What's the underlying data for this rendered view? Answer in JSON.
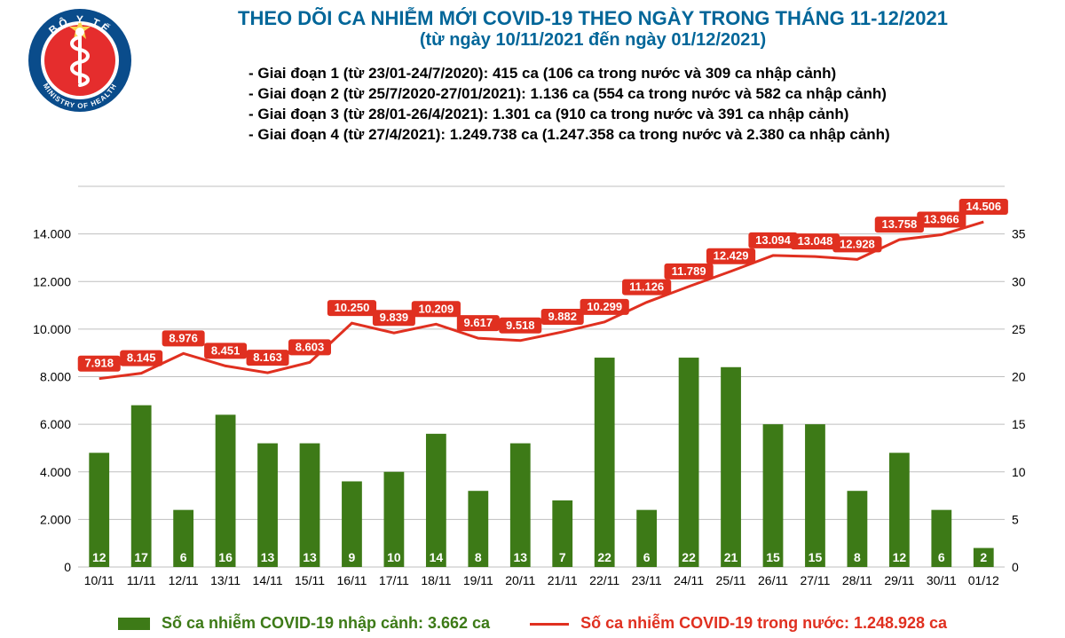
{
  "title": {
    "line1": "THEO DÕI CA NHIỄM MỚI COVID-19 THEO NGÀY TRONG THÁNG 11-12/2021",
    "line2": "(từ ngày 10/11/2021 đến ngày 01/12/2021)",
    "color": "#006699",
    "fontsize1": 22,
    "fontsize2": 20
  },
  "bullets": [
    "- Giai đoạn 1 (từ 23/01-24/7/2020): 415 ca (106 ca trong nước và 309 ca nhập cảnh)",
    "- Giai đoạn 2 (từ 25/7/2020-27/01/2021): 1.136 ca (554 ca trong nước và 582 ca nhập cảnh)",
    "- Giai đoạn 3 (từ 28/01-26/4/2021): 1.301 ca (910 ca trong nước và 391 ca nhập cảnh)",
    "- Giai đoạn 4 (từ 27/4/2021): 1.249.738 ca (1.247.358 ca trong nước và 2.380 ca nhập cảnh)"
  ],
  "legend": {
    "bar": "Số ca nhiễm COVID-19 nhập cảnh: 3.662 ca",
    "line": "Số ca nhiễm COVID-19 trong nước: 1.248.928 ca"
  },
  "chart": {
    "type": "bar+line",
    "background_color": "#ffffff",
    "grid_color": "#bfbfbf",
    "bar_color": "#3d7a17",
    "line_color": "#e03020",
    "line_width": 3,
    "bar_width": 0.48,
    "y_left": {
      "min": 0,
      "max": 16000,
      "ticks": [
        0,
        2000,
        4000,
        6000,
        8000,
        10000,
        12000,
        14000,
        16000
      ],
      "labels": [
        "0",
        "2.000",
        "4.000",
        "6.000",
        "8.000",
        "10.000",
        "12.000",
        "14.000",
        ""
      ]
    },
    "y_right": {
      "min": 0,
      "max": 40,
      "ticks": [
        0,
        5,
        10,
        15,
        20,
        25,
        30,
        35
      ],
      "labels": [
        "0",
        "5",
        "10",
        "15",
        "20",
        "25",
        "30",
        "35"
      ]
    },
    "categories": [
      "10/11",
      "11/11",
      "12/11",
      "13/11",
      "14/11",
      "15/11",
      "16/11",
      "17/11",
      "18/11",
      "19/11",
      "20/11",
      "21/11",
      "22/11",
      "23/11",
      "24/11",
      "25/11",
      "26/11",
      "27/11",
      "28/11",
      "29/11",
      "30/11",
      "01/12"
    ],
    "domestic_values": [
      7918,
      8145,
      8976,
      8451,
      8163,
      8603,
      10250,
      9839,
      10209,
      9617,
      9518,
      9882,
      10299,
      11126,
      11789,
      12429,
      13094,
      13048,
      12928,
      13758,
      13966,
      14506
    ],
    "domestic_labels": [
      "7.918",
      "8.145",
      "8.976",
      "8.451",
      "8.163",
      "8.603",
      "10.250",
      "9.839",
      "10.209",
      "9.617",
      "9.518",
      "9.882",
      "10.299",
      "11.126",
      "11.789",
      "12.429",
      "13.094",
      "13.048",
      "12.928",
      "13.758",
      "13.966",
      "14.506"
    ],
    "imported_values": [
      12,
      17,
      6,
      16,
      13,
      13,
      9,
      10,
      14,
      8,
      13,
      7,
      22,
      6,
      22,
      21,
      15,
      15,
      8,
      12,
      6,
      2
    ],
    "imported_labels": [
      "12",
      "17",
      "6",
      "16",
      "13",
      "13",
      "9",
      "10",
      "14",
      "8",
      "13",
      "7",
      "22",
      "6",
      "22",
      "21",
      "15",
      "15",
      "8",
      "12",
      "6",
      "2"
    ]
  },
  "logo": {
    "outer_text_top": "BỘ Y TẾ",
    "outer_text_bottom": "MINISTRY OF HEALTH",
    "ring_outer": "#0a4c8b",
    "ring_inner": "#ffffff",
    "center": "#e52d2d",
    "star": "#f8d64e"
  }
}
